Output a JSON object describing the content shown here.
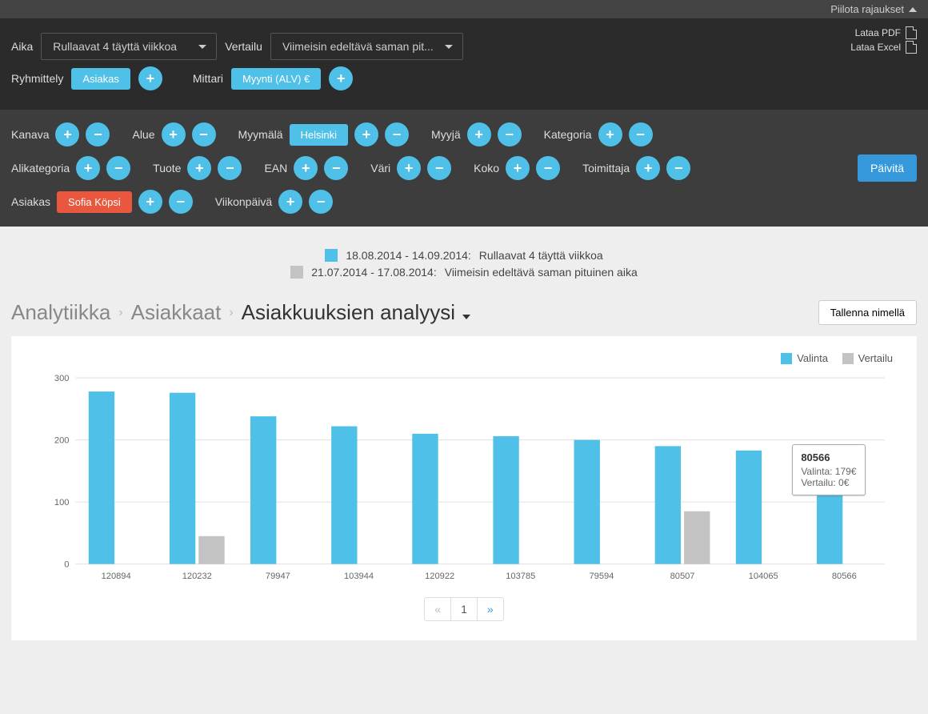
{
  "topbar": {
    "hide_filters": "Piilota rajaukset"
  },
  "controls": {
    "time_label": "Aika",
    "time_value": "Rullaavat 4 täyttä viikkoa",
    "compare_label": "Vertailu",
    "compare_value": "Viimeisin edeltävä saman pit...",
    "download_pdf": "Lataa PDF",
    "download_excel": "Lataa Excel",
    "grouping_label": "Ryhmittely",
    "grouping_pill": "Asiakas",
    "metric_label": "Mittari",
    "metric_pill": "Myynti (ALV) €"
  },
  "filters": {
    "refresh": "Päivitä",
    "rows": [
      [
        {
          "label": "Kanava"
        },
        {
          "label": "Alue"
        },
        {
          "label": "Myymälä",
          "pill": "Helsinki",
          "pill_color": "#4fc0e8"
        },
        {
          "label": "Myyjä"
        },
        {
          "label": "Kategoria"
        }
      ],
      [
        {
          "label": "Alikategoria"
        },
        {
          "label": "Tuote"
        },
        {
          "label": "EAN"
        },
        {
          "label": "Väri"
        },
        {
          "label": "Koko"
        },
        {
          "label": "Toimittaja"
        }
      ],
      [
        {
          "label": "Asiakas",
          "pill": "Sofia Köpsi",
          "pill_color": "#e9573f"
        },
        {
          "label": "Viikonpäivä"
        }
      ]
    ]
  },
  "date_legend": {
    "primary_color": "#4fc0e8",
    "compare_color": "#c3c3c3",
    "primary_range": "18.08.2014 - 14.09.2014:",
    "primary_desc": "Rullaavat 4 täyttä viikkoa",
    "compare_range": "21.07.2014 - 17.08.2014:",
    "compare_desc": "Viimeisin edeltävä saman pituinen aika"
  },
  "breadcrumb": {
    "a": "Analytiikka",
    "b": "Asiakkaat",
    "c": "Asiakkuuksien analyysi",
    "save": "Tallenna nimellä"
  },
  "chart": {
    "type": "bar",
    "legend_valinta": "Valinta",
    "legend_vertailu": "Vertailu",
    "color_valinta": "#4fc0e8",
    "color_vertailu": "#c3c3c3",
    "grid_color": "#e0e0e0",
    "axis_color": "#666",
    "background": "#ffffff",
    "ylim": [
      0,
      300
    ],
    "ytick_step": 100,
    "categories": [
      "120894",
      "120232",
      "79947",
      "103944",
      "120922",
      "103785",
      "79594",
      "80507",
      "104065",
      "80566"
    ],
    "valinta": [
      278,
      276,
      238,
      222,
      210,
      206,
      200,
      190,
      183,
      179
    ],
    "vertailu": [
      0,
      45,
      0,
      0,
      0,
      0,
      0,
      85,
      0,
      0
    ],
    "bar_width_ratio": 0.32,
    "bar_gap_ratio": 0.04
  },
  "tooltip": {
    "category": "80566",
    "valinta_label": "Valinta:",
    "valinta_value": "179€",
    "vertailu_label": "Vertailu:",
    "vertailu_value": "0€"
  },
  "pager": {
    "prev": "«",
    "page": "1",
    "next": "»"
  }
}
